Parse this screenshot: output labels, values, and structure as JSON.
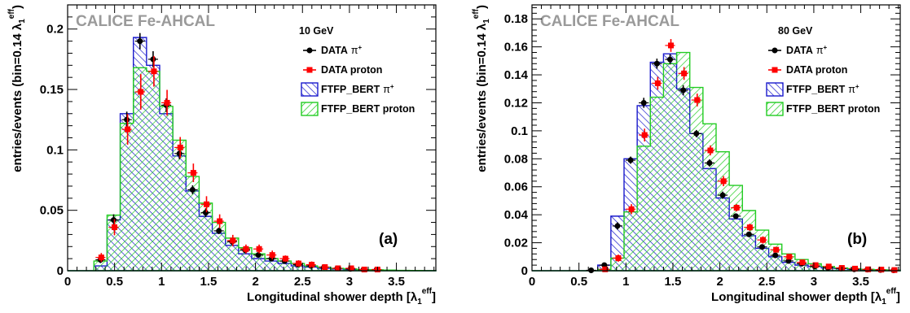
{
  "colors": {
    "data_pi": "#000000",
    "data_proton": "#ff0000",
    "ftfp_pi": "#1a1acc",
    "ftfp_proton": "#22cc22",
    "banner": "#9a9a9a"
  },
  "chart_data": [
    {
      "type": "histogram",
      "banner": "CALICE Fe-AHCAL",
      "energy_label": "10 GeV",
      "panel_label": "(a)",
      "xlabel_main": "Longitudinal shower depth [λ",
      "xlabel_sub": "1",
      "xlabel_sup": "eff",
      "xlabel_close": "]",
      "ylabel_main": "entries/events (bin=0.14 λ",
      "ylabel_sub": "1",
      "ylabel_sup": "eff",
      "ylabel_close": ")",
      "xlim": [
        0,
        3.92
      ],
      "ylim": [
        0,
        0.22
      ],
      "x_ticks": [
        "0",
        "0.5",
        "1",
        "1.5",
        "2",
        "2.5",
        "3",
        "3.5"
      ],
      "x_tick_values": [
        0,
        0.5,
        1,
        1.5,
        2,
        2.5,
        3,
        3.5
      ],
      "y_ticks": [
        "0",
        "0.05",
        "0.1",
        "0.15",
        "0.2"
      ],
      "y_tick_values": [
        0,
        0.05,
        0.1,
        0.15,
        0.2
      ],
      "bin_width": 0.14,
      "bin_start": 0,
      "legend": [
        {
          "name": "DATA",
          "suffix": "π",
          "sup": "+",
          "kind": "marker-circle",
          "color": "#000000"
        },
        {
          "name": "DATA  proton",
          "suffix": "",
          "sup": "",
          "kind": "marker-square",
          "color": "#ff0000"
        },
        {
          "name": "FTFP_BERT",
          "suffix": "π",
          "sup": "+",
          "kind": "hatch-back",
          "color": "#1a1acc"
        },
        {
          "name": "FTFP_BERT  proton",
          "suffix": "",
          "sup": "",
          "kind": "hatch-fwd",
          "color": "#22cc22"
        }
      ],
      "series": [
        {
          "name": "FTFP_BERT π+",
          "style": "hist-back",
          "values": [
            0,
            0,
            0.004,
            0.042,
            0.13,
            0.193,
            0.17,
            0.13,
            0.095,
            0.066,
            0.045,
            0.031,
            0.021,
            0.014,
            0.01,
            0.008,
            0.006,
            0.004,
            0.003,
            0.002,
            0.0015,
            0.001,
            0.0007,
            0.0005,
            0.0003,
            0.0002,
            0.0001,
            0.0001
          ]
        },
        {
          "name": "FTFP_BERT proton",
          "style": "hist-fwd",
          "values": [
            0,
            0,
            0.008,
            0.046,
            0.122,
            0.168,
            0.165,
            0.136,
            0.108,
            0.078,
            0.056,
            0.04,
            0.027,
            0.019,
            0.014,
            0.01,
            0.008,
            0.006,
            0.004,
            0.003,
            0.002,
            0.0015,
            0.001,
            0.0008,
            0.0005,
            0.0003,
            0.0002,
            0.0001
          ]
        },
        {
          "name": "DATA π+",
          "style": "circle",
          "values": [
            null,
            null,
            0.009,
            0.042,
            0.125,
            0.19,
            0.175,
            0.137,
            0.097,
            0.067,
            0.048,
            0.033,
            0.024,
            0.017,
            0.013,
            0.01,
            0.008,
            0.005,
            0.004,
            0.003,
            0.002,
            0.0015,
            0.001,
            0.001,
            null,
            null,
            null,
            null
          ],
          "errors": [
            0,
            0,
            0.002,
            0.004,
            0.006,
            0.006,
            0.006,
            0.005,
            0.004,
            0.003,
            0.003,
            0.002,
            0.002,
            0.001,
            0.001,
            0.001,
            0.001,
            0.001,
            0.001,
            0.001,
            0.001,
            0.001,
            0.001,
            0.001,
            0,
            0,
            0,
            0
          ]
        },
        {
          "name": "DATA proton",
          "style": "square",
          "values": [
            null,
            null,
            0.011,
            0.036,
            0.117,
            0.148,
            0.165,
            0.139,
            0.102,
            0.081,
            0.055,
            0.041,
            0.025,
            0.018,
            0.018,
            0.013,
            0.01,
            0.006,
            0.005,
            0.003,
            0.002,
            0.002,
            0.001,
            0.001,
            null,
            null,
            null,
            null
          ],
          "errors": [
            0,
            0,
            0.003,
            0.006,
            0.012,
            0.014,
            0.012,
            0.01,
            0.008,
            0.007,
            0.006,
            0.005,
            0.004,
            0.003,
            0.003,
            0.003,
            0.002,
            0.002,
            0.002,
            0.001,
            0.001,
            0.001,
            0.001,
            0.001,
            0,
            0,
            0,
            0
          ]
        }
      ]
    },
    {
      "type": "histogram",
      "banner": "CALICE Fe-AHCAL",
      "energy_label": "80 GeV",
      "panel_label": "(b)",
      "xlabel_main": "Longitudinal shower depth [λ",
      "xlabel_sub": "1",
      "xlabel_sup": "eff",
      "xlabel_close": "]",
      "ylabel_main": "entries/events (bin=0.14 λ",
      "ylabel_sub": "1",
      "ylabel_sup": "eff",
      "ylabel_close": ")",
      "xlim": [
        0,
        3.92
      ],
      "ylim": [
        0,
        0.19
      ],
      "x_ticks": [
        "0",
        "0.5",
        "1",
        "1.5",
        "2",
        "2.5",
        "3",
        "3.5"
      ],
      "x_tick_values": [
        0,
        0.5,
        1,
        1.5,
        2,
        2.5,
        3,
        3.5
      ],
      "y_ticks": [
        "0",
        "0.02",
        "0.04",
        "0.06",
        "0.08",
        "0.1",
        "0.12",
        "0.14",
        "0.16",
        "0.18"
      ],
      "y_tick_values": [
        0,
        0.02,
        0.04,
        0.06,
        0.08,
        0.1,
        0.12,
        0.14,
        0.16,
        0.18
      ],
      "bin_width": 0.14,
      "bin_start": 0,
      "legend": [
        {
          "name": "DATA",
          "suffix": "π",
          "sup": "+",
          "kind": "marker-circle",
          "color": "#000000"
        },
        {
          "name": "DATA  proton",
          "suffix": "",
          "sup": "",
          "kind": "marker-square",
          "color": "#ff0000"
        },
        {
          "name": "FTFP_BERT",
          "suffix": "π",
          "sup": "+",
          "kind": "hatch-back",
          "color": "#1a1acc"
        },
        {
          "name": "FTFP_BERT  proton",
          "suffix": "",
          "sup": "",
          "kind": "hatch-fwd",
          "color": "#22cc22"
        }
      ],
      "series": [
        {
          "name": "FTFP_BERT π+",
          "style": "hist-back",
          "values": [
            0,
            0,
            0,
            0,
            0,
            0.004,
            0.039,
            0.08,
            0.118,
            0.149,
            0.155,
            0.13,
            0.098,
            0.073,
            0.052,
            0.037,
            0.025,
            0.016,
            0.01,
            0.006,
            0.004,
            0.003,
            0.002,
            0.0015,
            0.001,
            0.0008,
            0.0005,
            0.0003
          ]
        },
        {
          "name": "FTFP_BERT proton",
          "style": "hist-fwd",
          "values": [
            0,
            0,
            0,
            0,
            0,
            0.001,
            0.009,
            0.042,
            0.089,
            0.124,
            0.148,
            0.156,
            0.131,
            0.105,
            0.085,
            0.061,
            0.043,
            0.029,
            0.019,
            0.012,
            0.008,
            0.005,
            0.003,
            0.002,
            0.0015,
            0.001,
            0.0007,
            0.0004
          ]
        },
        {
          "name": "DATA π+",
          "style": "circle",
          "values": [
            null,
            null,
            null,
            null,
            0.0003,
            0.004,
            0.032,
            0.079,
            0.12,
            0.148,
            0.151,
            0.129,
            0.098,
            0.077,
            0.054,
            0.039,
            0.026,
            0.017,
            0.011,
            0.007,
            0.005,
            0.003,
            0.002,
            0.0015,
            0.001,
            0.0008,
            0.0005,
            0.0003
          ],
          "errors": [
            0,
            0,
            0,
            0,
            0.0003,
            0.001,
            0.002,
            0.002,
            0.003,
            0.003,
            0.003,
            0.003,
            0.002,
            0.002,
            0.002,
            0.001,
            0.001,
            0.001,
            0.001,
            0.001,
            0.001,
            0.001,
            0.001,
            0.001,
            0.001,
            0.001,
            0.001,
            0.001
          ]
        },
        {
          "name": "DATA proton",
          "style": "square",
          "values": [
            null,
            null,
            null,
            null,
            null,
            0.001,
            0.009,
            0.044,
            0.097,
            0.134,
            0.161,
            0.141,
            0.122,
            0.086,
            0.064,
            0.045,
            0.031,
            0.022,
            0.015,
            0.01,
            0.006,
            0.004,
            0.003,
            0.002,
            0.0015,
            0.001,
            0.0008,
            0.0005
          ],
          "errors": [
            0,
            0,
            0,
            0,
            0,
            0.001,
            0.002,
            0.003,
            0.004,
            0.004,
            0.004,
            0.004,
            0.004,
            0.003,
            0.003,
            0.002,
            0.002,
            0.002,
            0.001,
            0.001,
            0.001,
            0.001,
            0.001,
            0.001,
            0.001,
            0.001,
            0.001,
            0.001
          ]
        }
      ]
    }
  ]
}
